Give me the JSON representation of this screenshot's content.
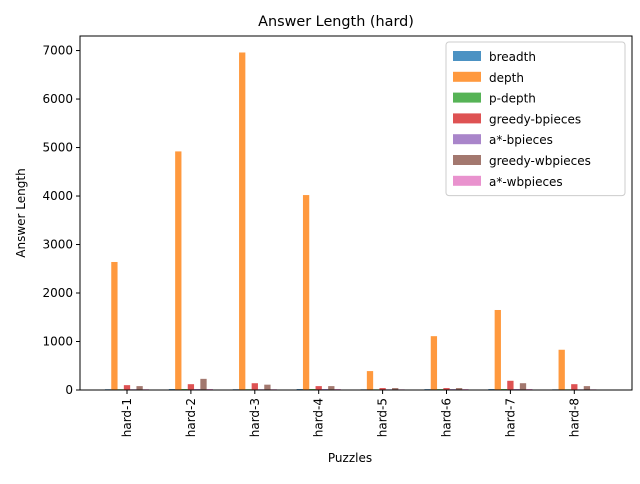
{
  "chart_data": {
    "type": "bar",
    "title": "Answer Length (hard)",
    "xlabel": "Puzzles",
    "ylabel": "Answer Length",
    "categories": [
      "hard-1",
      "hard-2",
      "hard-3",
      "hard-4",
      "hard-5",
      "hard-6",
      "hard-7",
      "hard-8"
    ],
    "ylim": [
      0,
      7300
    ],
    "yticks": [
      0,
      1000,
      2000,
      3000,
      4000,
      5000,
      6000,
      7000
    ],
    "legend_position": "top-right",
    "grid": false,
    "series": [
      {
        "name": "breadth",
        "color": "#1f77b4",
        "values": [
          16,
          20,
          16,
          20,
          14,
          18,
          20,
          14
        ]
      },
      {
        "name": "depth",
        "color": "#ff7f0e",
        "values": [
          2640,
          4920,
          6960,
          4020,
          390,
          1110,
          1650,
          830
        ]
      },
      {
        "name": "p-depth",
        "color": "#2ca02c",
        "values": [
          16,
          20,
          16,
          20,
          14,
          18,
          20,
          14
        ]
      },
      {
        "name": "greedy-bpieces",
        "color": "#d62728",
        "values": [
          100,
          120,
          140,
          80,
          40,
          40,
          190,
          120
        ]
      },
      {
        "name": "a*-bpieces",
        "color": "#9467bd",
        "values": [
          16,
          20,
          16,
          20,
          14,
          18,
          20,
          14
        ]
      },
      {
        "name": "greedy-wbpieces",
        "color": "#8c564b",
        "values": [
          80,
          230,
          110,
          80,
          40,
          40,
          140,
          80
        ]
      },
      {
        "name": "a*-wbpieces",
        "color": "#e377c2",
        "values": [
          16,
          20,
          16,
          20,
          14,
          18,
          20,
          14
        ]
      }
    ]
  }
}
